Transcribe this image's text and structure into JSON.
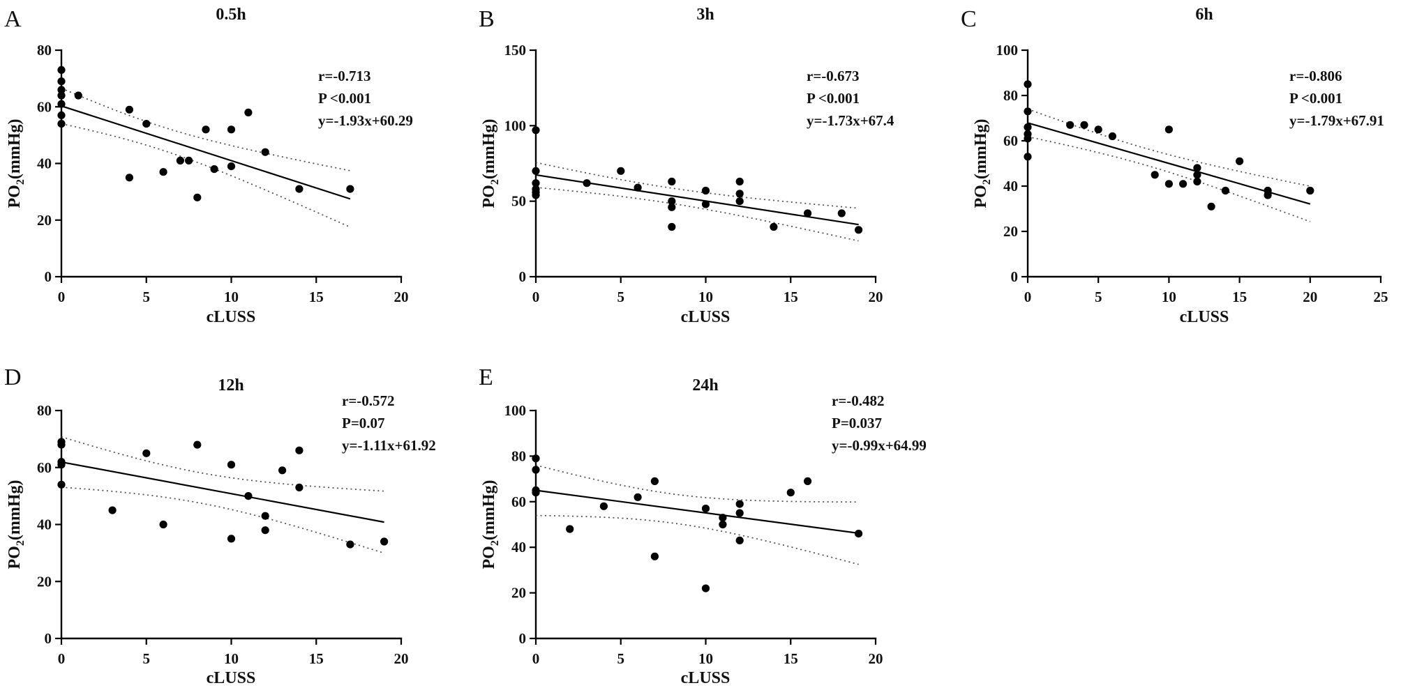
{
  "figure": {
    "background": "#ffffff",
    "colors": {
      "points": "#000000",
      "regression_line": "#000000",
      "confidence_band": "#4b4b4b",
      "text": "#111111"
    }
  },
  "chart_data": [
    {
      "type": "scatter",
      "panel": "A",
      "title": "0.5h",
      "xlabel": "cLUSS",
      "ylabel": "PO2（mmHg）",
      "annotation": {
        "r": "r=-0.713",
        "p": "P <0.001",
        "eq": "y=-1.93x+60.29"
      },
      "xlim": [
        0,
        20
      ],
      "xticks": [
        0,
        5,
        10,
        15,
        20
      ],
      "ylim": [
        0,
        80
      ],
      "yticks": [
        0,
        20,
        40,
        60,
        80
      ],
      "regression": {
        "slope": -1.93,
        "intercept": 60.29,
        "x_range": [
          0,
          17
        ]
      },
      "ci_band": true,
      "points": [
        [
          0,
          73
        ],
        [
          0,
          69
        ],
        [
          0,
          66
        ],
        [
          0,
          64
        ],
        [
          0,
          61
        ],
        [
          0,
          57
        ],
        [
          0,
          54
        ],
        [
          1,
          64
        ],
        [
          4,
          59
        ],
        [
          4,
          35
        ],
        [
          5,
          54
        ],
        [
          6,
          37
        ],
        [
          7,
          41
        ],
        [
          7.5,
          41
        ],
        [
          8,
          28
        ],
        [
          8.5,
          52
        ],
        [
          9,
          38
        ],
        [
          10,
          39
        ],
        [
          10,
          52
        ],
        [
          11,
          58
        ],
        [
          12,
          44
        ],
        [
          14,
          31
        ],
        [
          17,
          31
        ]
      ]
    },
    {
      "type": "scatter",
      "panel": "B",
      "title": "3h",
      "xlabel": "cLUSS",
      "ylabel": "PO2（mmHg）",
      "annotation": {
        "r": "r=-0.673",
        "p": "P <0.001",
        "eq": "y=-1.73x+67.4"
      },
      "xlim": [
        0,
        20
      ],
      "xticks": [
        0,
        5,
        10,
        15,
        20
      ],
      "ylim": [
        0,
        150
      ],
      "yticks": [
        0,
        50,
        100,
        150
      ],
      "regression": {
        "slope": -1.73,
        "intercept": 67.4,
        "x_range": [
          0,
          19
        ]
      },
      "ci_band": true,
      "points": [
        [
          0,
          97
        ],
        [
          0,
          70
        ],
        [
          0,
          62
        ],
        [
          0,
          58
        ],
        [
          0,
          56
        ],
        [
          0,
          54
        ],
        [
          3,
          62
        ],
        [
          5,
          70
        ],
        [
          6,
          59
        ],
        [
          8,
          63
        ],
        [
          8,
          50
        ],
        [
          8,
          46
        ],
        [
          8,
          33
        ],
        [
          10,
          57
        ],
        [
          10,
          48
        ],
        [
          12,
          63
        ],
        [
          12,
          55
        ],
        [
          12,
          50
        ],
        [
          14,
          33
        ],
        [
          16,
          42
        ],
        [
          18,
          42
        ],
        [
          19,
          31
        ]
      ]
    },
    {
      "type": "scatter",
      "panel": "C",
      "title": "6h",
      "xlabel": "cLUSS",
      "ylabel": "PO2（mmHg）",
      "annotation": {
        "r": "r=-0.806",
        "p": "P <0.001",
        "eq": "y=-1.79x+67.91"
      },
      "xlim": [
        0,
        25
      ],
      "xticks": [
        0,
        5,
        10,
        15,
        20,
        25
      ],
      "ylim": [
        0,
        100
      ],
      "yticks": [
        0,
        20,
        40,
        60,
        80,
        100
      ],
      "regression": {
        "slope": -1.79,
        "intercept": 67.91,
        "x_range": [
          0,
          20
        ]
      },
      "ci_band": true,
      "points": [
        [
          0,
          85
        ],
        [
          0,
          73
        ],
        [
          0,
          66
        ],
        [
          0,
          63
        ],
        [
          0,
          61
        ],
        [
          0,
          53
        ],
        [
          3,
          67
        ],
        [
          4,
          67
        ],
        [
          5,
          65
        ],
        [
          6,
          62
        ],
        [
          9,
          45
        ],
        [
          10,
          41
        ],
        [
          10,
          65
        ],
        [
          11,
          41
        ],
        [
          12,
          48
        ],
        [
          12,
          45
        ],
        [
          12,
          42
        ],
        [
          13,
          31
        ],
        [
          14,
          38
        ],
        [
          15,
          51
        ],
        [
          17,
          38
        ],
        [
          17,
          36
        ],
        [
          20,
          38
        ]
      ]
    },
    {
      "type": "scatter",
      "panel": "D",
      "title": "12h",
      "xlabel": "cLUSS",
      "ylabel": "PO2（mmHg）",
      "annotation": {
        "r": "r=-0.572",
        "p": "P=0.07",
        "eq": "y=-1.11x+61.92"
      },
      "xlim": [
        0,
        20
      ],
      "xticks": [
        0,
        5,
        10,
        15,
        20
      ],
      "ylim": [
        0,
        80
      ],
      "yticks": [
        0,
        20,
        40,
        60,
        80
      ],
      "regression": {
        "slope": -1.11,
        "intercept": 61.92,
        "x_range": [
          0,
          19
        ]
      },
      "ci_band": true,
      "points": [
        [
          0,
          69
        ],
        [
          0,
          68
        ],
        [
          0,
          62
        ],
        [
          0,
          61
        ],
        [
          0,
          54
        ],
        [
          3,
          45
        ],
        [
          5,
          65
        ],
        [
          6,
          40
        ],
        [
          8,
          68
        ],
        [
          10,
          61
        ],
        [
          10,
          35
        ],
        [
          11,
          50
        ],
        [
          12,
          43
        ],
        [
          12,
          38
        ],
        [
          13,
          59
        ],
        [
          14,
          66
        ],
        [
          14,
          53
        ],
        [
          17,
          33
        ],
        [
          19,
          34
        ]
      ]
    },
    {
      "type": "scatter",
      "panel": "E",
      "title": "24h",
      "xlabel": "cLUSS",
      "ylabel": "PO2（mmHg）",
      "annotation": {
        "r": "r=-0.482",
        "p": "P=0.037",
        "eq": "y=-0.99x+64.99"
      },
      "xlim": [
        0,
        20
      ],
      "xticks": [
        0,
        5,
        10,
        15,
        20
      ],
      "ylim": [
        0,
        100
      ],
      "yticks": [
        0,
        20,
        40,
        60,
        80,
        100
      ],
      "regression": {
        "slope": -0.99,
        "intercept": 64.99,
        "x_range": [
          0,
          19
        ]
      },
      "ci_band": true,
      "points": [
        [
          0,
          79
        ],
        [
          0,
          74
        ],
        [
          0,
          65
        ],
        [
          0,
          64
        ],
        [
          2,
          48
        ],
        [
          4,
          58
        ],
        [
          6,
          62
        ],
        [
          7,
          69
        ],
        [
          7,
          36
        ],
        [
          10,
          57
        ],
        [
          10,
          22
        ],
        [
          11,
          53
        ],
        [
          11,
          50
        ],
        [
          12,
          59
        ],
        [
          12,
          55
        ],
        [
          12,
          43
        ],
        [
          15,
          64
        ],
        [
          16,
          69
        ],
        [
          19,
          46
        ]
      ]
    }
  ]
}
